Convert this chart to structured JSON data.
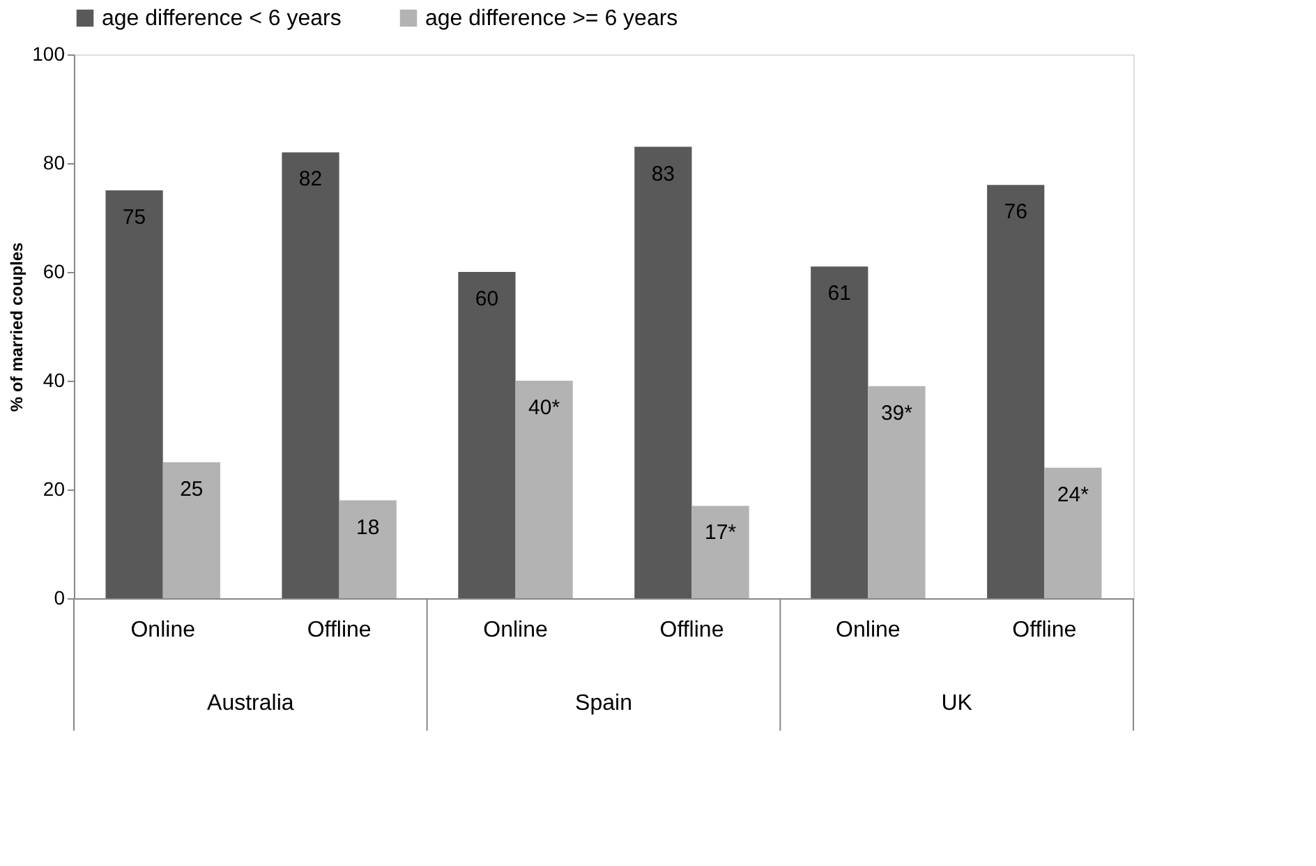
{
  "chart_data": {
    "type": "bar",
    "categories": [
      "Online",
      "Offline",
      "Online",
      "Offline",
      "Online",
      "Offline"
    ],
    "series": [
      {
        "name": "age difference < 6 years",
        "color": "#595959",
        "values": [
          75,
          82,
          60,
          83,
          61,
          76
        ],
        "value_labels": [
          "75",
          "82",
          "60",
          "83",
          "61",
          "76"
        ]
      },
      {
        "name": "age difference >= 6 years",
        "color": "#b3b3b3",
        "values": [
          25,
          18,
          40,
          17,
          39,
          24
        ],
        "value_labels": [
          "25",
          "18",
          "40*",
          "17*",
          "39*",
          "24*"
        ]
      }
    ],
    "ylabel": "% of married couples",
    "ylim": [
      0,
      100
    ],
    "yticks": [
      0,
      20,
      40,
      60,
      80,
      100
    ],
    "annotations": [
      "Australia",
      "Spain",
      "UK"
    ],
    "grid": false,
    "legend": "top"
  }
}
